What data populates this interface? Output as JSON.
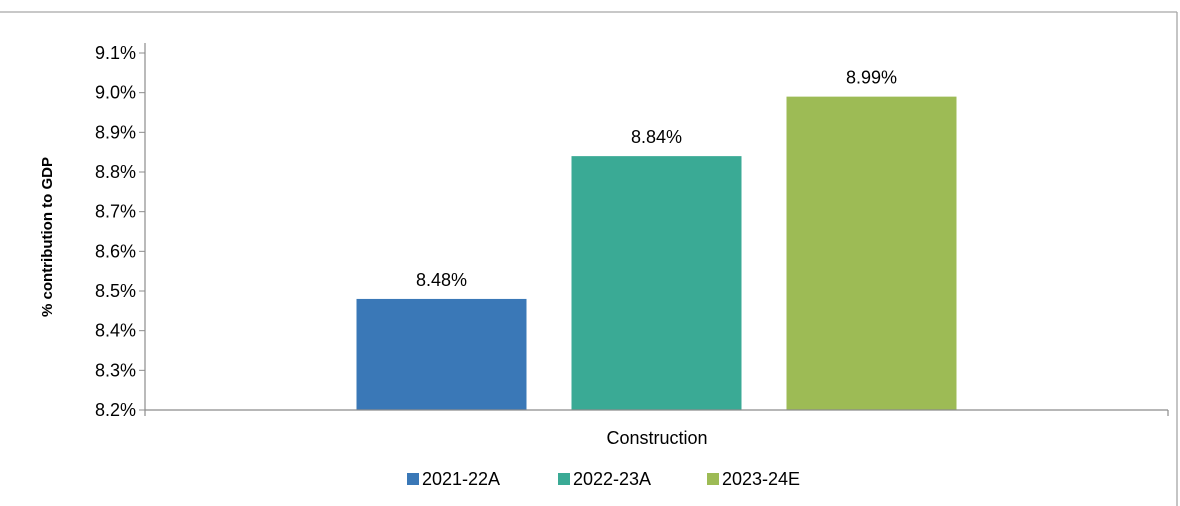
{
  "chart_data": {
    "type": "bar",
    "title": "",
    "xlabel": "",
    "ylabel": "% contribution to GDP",
    "categories": [
      "Construction"
    ],
    "series": [
      {
        "name": "2021-22A",
        "values": [
          8.48
        ],
        "label": "8.48%",
        "color": "#3a78b7"
      },
      {
        "name": "2022-23A",
        "values": [
          8.84
        ],
        "label": "8.84%",
        "color": "#3aaa95"
      },
      {
        "name": "2023-24E",
        "values": [
          8.99
        ],
        "label": "8.99%",
        "color": "#9dbb55"
      }
    ],
    "ylim": [
      8.2,
      9.1
    ],
    "yticks": [
      "8.2%",
      "8.3%",
      "8.4%",
      "8.5%",
      "8.6%",
      "8.7%",
      "8.8%",
      "8.9%",
      "9.0%",
      "9.1%"
    ],
    "ytick_values": [
      8.2,
      8.3,
      8.4,
      8.5,
      8.6,
      8.7,
      8.8,
      8.9,
      9.0,
      9.1
    ],
    "grid": false,
    "legend": "bottom-center"
  }
}
